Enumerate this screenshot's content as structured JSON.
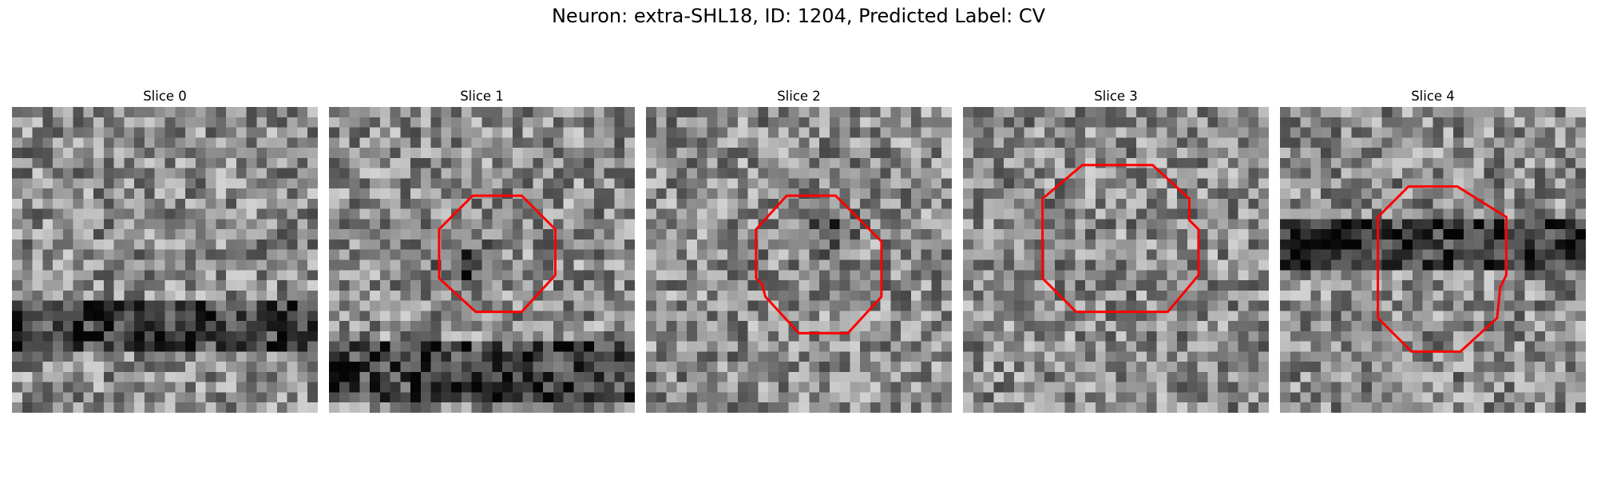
{
  "figure": {
    "title": "Neuron: extra-SHL18, ID: 1204, Predicted Label: CV",
    "contour_color": "#ff0000",
    "colormap": "gray",
    "grid_resolution": 30
  },
  "slices": [
    {
      "title": "Slice 0",
      "has_contour": false,
      "texture": {
        "seed": 11,
        "dark_band_rows": [
          0.62,
          0.8
        ],
        "dark_blob": null
      },
      "contour": []
    },
    {
      "title": "Slice 1",
      "has_contour": true,
      "texture": {
        "seed": 23,
        "dark_band_rows": [
          0.78,
          0.98
        ],
        "dark_blob": [
          0.45,
          0.52
        ]
      },
      "contour": [
        [
          0.47,
          0.29
        ],
        [
          0.63,
          0.29
        ],
        [
          0.74,
          0.4
        ],
        [
          0.74,
          0.55
        ],
        [
          0.63,
          0.67
        ],
        [
          0.48,
          0.67
        ],
        [
          0.36,
          0.56
        ],
        [
          0.36,
          0.4
        ]
      ]
    },
    {
      "title": "Slice 2",
      "has_contour": true,
      "texture": {
        "seed": 37,
        "dark_band_rows": null,
        "dark_blob": [
          0.6,
          0.4
        ]
      },
      "contour": [
        [
          0.46,
          0.29
        ],
        [
          0.62,
          0.29
        ],
        [
          0.77,
          0.44
        ],
        [
          0.77,
          0.62
        ],
        [
          0.66,
          0.74
        ],
        [
          0.5,
          0.74
        ],
        [
          0.39,
          0.62
        ],
        [
          0.38,
          0.58
        ],
        [
          0.36,
          0.56
        ],
        [
          0.36,
          0.4
        ]
      ]
    },
    {
      "title": "Slice 3",
      "has_contour": true,
      "texture": {
        "seed": 53,
        "dark_band_rows": null,
        "dark_blob": null
      },
      "contour": [
        [
          0.39,
          0.19
        ],
        [
          0.62,
          0.19
        ],
        [
          0.74,
          0.3
        ],
        [
          0.74,
          0.37
        ],
        [
          0.77,
          0.4
        ],
        [
          0.77,
          0.55
        ],
        [
          0.67,
          0.67
        ],
        [
          0.37,
          0.67
        ],
        [
          0.26,
          0.56
        ],
        [
          0.26,
          0.3
        ]
      ]
    },
    {
      "title": "Slice 4",
      "has_contour": true,
      "texture": {
        "seed": 71,
        "dark_band_rows": [
          0.35,
          0.55
        ],
        "dark_blob": [
          0.12,
          0.45
        ]
      },
      "contour": [
        [
          0.42,
          0.26
        ],
        [
          0.58,
          0.26
        ],
        [
          0.74,
          0.36
        ],
        [
          0.74,
          0.55
        ],
        [
          0.72,
          0.59
        ],
        [
          0.71,
          0.69
        ],
        [
          0.59,
          0.8
        ],
        [
          0.43,
          0.8
        ],
        [
          0.32,
          0.69
        ],
        [
          0.32,
          0.36
        ]
      ]
    }
  ]
}
